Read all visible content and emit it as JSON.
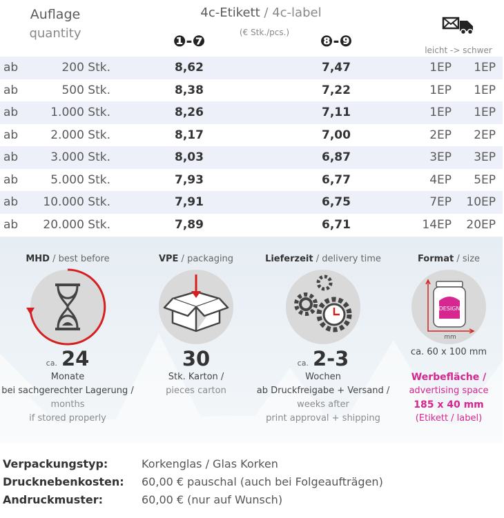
{
  "header": {
    "quantity_de": "Auflage",
    "quantity_en": "quantity",
    "product_de": "4c-Etikett",
    "product_en": " / 4c-label",
    "unit": "(€ Stk./pcs.)",
    "group1": "❶-❼",
    "group2": "❽-❾",
    "shipping": "leicht -> schwer"
  },
  "table": {
    "rows": [
      [
        "ab",
        "200 Stk.",
        "8,62",
        "7,47",
        "1EP",
        "1EP"
      ],
      [
        "ab",
        "500 Stk.",
        "8,38",
        "7,22",
        "1EP",
        "1EP"
      ],
      [
        "ab",
        "1.000 Stk.",
        "8,26",
        "7,11",
        "1EP",
        "1EP"
      ],
      [
        "ab",
        "2.000 Stk.",
        "8,17",
        "7,00",
        "2EP",
        "2EP"
      ],
      [
        "ab",
        "3.000 Stk.",
        "8,03",
        "6,87",
        "3EP",
        "3EP"
      ],
      [
        "ab",
        "5.000 Stk.",
        "7,93",
        "6,77",
        "4EP",
        "5EP"
      ],
      [
        "ab",
        "10.000 Stk.",
        "7,91",
        "6,75",
        "7EP",
        "10EP"
      ],
      [
        "ab",
        "20.000 Stk.",
        "7,89",
        "6,71",
        "14EP",
        "20EP"
      ]
    ]
  },
  "info": [
    {
      "title": "MHD",
      "title_en": " / best before",
      "prefix": "ca.",
      "value": "24",
      "lines": [
        "Monate",
        "bei sachgerechter Lagerung /",
        "months",
        "if stored properly"
      ]
    },
    {
      "title": "VPE",
      "title_en": " / packaging",
      "value": "30",
      "lines": [
        "Stk. Karton /",
        "pieces carton"
      ]
    },
    {
      "title": "Lieferzeit",
      "title_en": " / delivery time",
      "prefix": "ca.",
      "value": "2-3",
      "lines": [
        "Wochen",
        "ab Druckfreigabe + Versand /",
        "weeks after",
        "print approval + shipping"
      ]
    },
    {
      "title": "Format",
      "title_en": " / size",
      "icon_text": "DESIGN",
      "icon_unit": "mm",
      "size": "ca. 60 x 100 mm",
      "lines": [
        "Werbefläche /",
        "advertising space",
        "185 x 40 mm",
        "(Etikett / label)"
      ]
    }
  ],
  "footer": [
    {
      "label": "Verpackungstyp:",
      "value": "Korkenglas / Glas Korken"
    },
    {
      "label": "Drucknebenkosten:",
      "value": "60,00 € pauschal (auch bei Folgeaufträgen)"
    },
    {
      "label": "Andruckmuster:",
      "value": "60,00 € (nur auf Wunsch)"
    }
  ]
}
